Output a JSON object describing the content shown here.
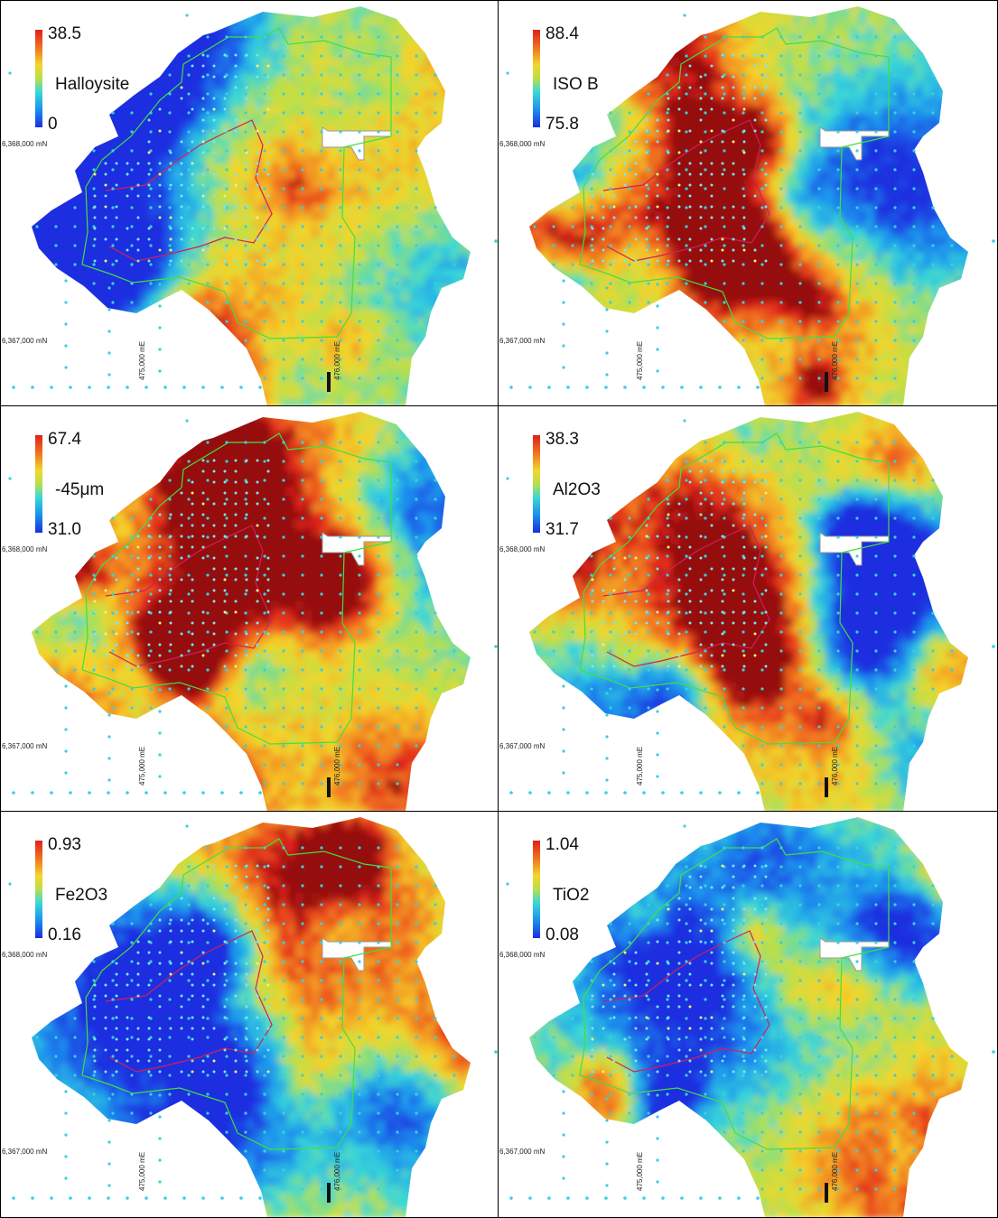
{
  "panels": [
    {
      "id": "halloysite",
      "variable": "Halloysite",
      "max": "38.5",
      "min": "0",
      "seed": 11
    },
    {
      "id": "iso-b",
      "variable": "ISO B",
      "max": "88.4",
      "min": "75.8",
      "seed": 23
    },
    {
      "id": "minus-45um",
      "variable": "-45μm",
      "max": "67.4",
      "min": "31.0",
      "seed": 37
    },
    {
      "id": "al2o3",
      "variable": "Al2O3",
      "max": "38.3",
      "min": "31.7",
      "seed": 41
    },
    {
      "id": "fe2o3",
      "variable": "Fe2O3",
      "max": "0.93",
      "min": "0.16",
      "seed": 53
    },
    {
      "id": "tio2",
      "variable": "TiO2",
      "max": "1.04",
      "min": "0.08",
      "seed": 67
    }
  ],
  "grid_labels": {
    "north_1": "6,368,000 mN",
    "north_2": "6,367,000 mN",
    "east_1": "475,000 mE",
    "east_2": "476,000 mE"
  },
  "colors": {
    "high": "#e0201a",
    "mid": "#f5d52a",
    "low": "#1a2ee0",
    "sample_points": "#38d0e0",
    "deposit_outline": "#40e040",
    "inner_outline": "#d0205a"
  }
}
